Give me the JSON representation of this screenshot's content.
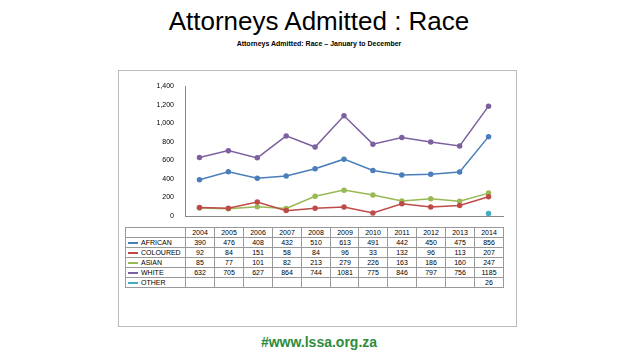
{
  "page": {
    "title": "Attorneys Admitted : Race",
    "footer": "#www.lssa.org.za"
  },
  "chart_data": {
    "type": "line",
    "title": "Attorneys Admitted: Race – January to December",
    "categories": [
      "2004",
      "2005",
      "2006",
      "2007",
      "2008",
      "2009",
      "2010",
      "2011",
      "2012",
      "2013",
      "2014"
    ],
    "series": [
      {
        "name": "AFRICAN",
        "color": "#4a7ebb",
        "values": [
          390,
          476,
          408,
          432,
          510,
          613,
          491,
          442,
          450,
          475,
          856
        ]
      },
      {
        "name": "COLOURED",
        "color": "#be4b48",
        "values": [
          92,
          84,
          151,
          58,
          84,
          96,
          33,
          132,
          96,
          113,
          207
        ]
      },
      {
        "name": "ASIAN",
        "color": "#98b954",
        "values": [
          85,
          77,
          101,
          82,
          213,
          279,
          226,
          163,
          186,
          160,
          247
        ]
      },
      {
        "name": "WHITE",
        "color": "#7d60a0",
        "values": [
          632,
          705,
          627,
          864,
          744,
          1081,
          775,
          846,
          797,
          756,
          1185
        ]
      },
      {
        "name": "OTHER",
        "color": "#46aac5",
        "values": [
          null,
          null,
          null,
          null,
          null,
          null,
          null,
          null,
          null,
          null,
          26
        ]
      }
    ],
    "ylim": [
      0,
      1400
    ],
    "yticks": [
      0,
      200,
      400,
      600,
      800,
      1000,
      1200,
      1400
    ],
    "grid": false
  }
}
